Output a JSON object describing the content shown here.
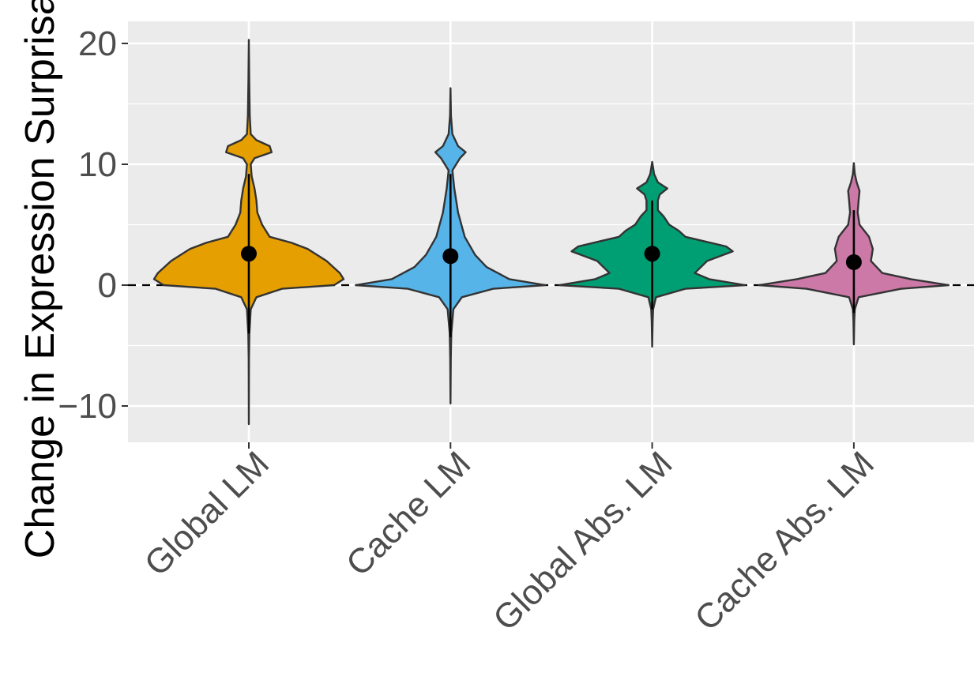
{
  "chart_data": {
    "type": "violin",
    "title": "",
    "xlabel": "",
    "ylabel": "Change in Expression Surprisal",
    "ylim": [
      -13,
      22
    ],
    "y_ticks": [
      -10,
      0,
      10,
      20
    ],
    "y_tick_labels": [
      "−10",
      "0",
      "10",
      "20"
    ],
    "grid": true,
    "legend": "none",
    "reference_line": {
      "y": 0,
      "style": "dashed"
    },
    "categories": [
      "Global LM",
      "Cache LM",
      "Global Abs. LM",
      "Cache Abs. LM"
    ],
    "series": [
      {
        "category": "Global LM",
        "color": "#E69F00",
        "mean": 2.6,
        "whisker": [
          -4.0,
          9.2
        ],
        "range": [
          -11.5,
          20.3
        ],
        "density": [
          [
            -11.5,
            0.0
          ],
          [
            -6,
            0.002
          ],
          [
            -4,
            0.006
          ],
          [
            -2,
            0.02
          ],
          [
            -1,
            0.08
          ],
          [
            -0.3,
            0.35
          ],
          [
            0,
            0.9
          ],
          [
            0.5,
            1.0
          ],
          [
            1.0,
            0.96
          ],
          [
            2.0,
            0.82
          ],
          [
            3.0,
            0.62
          ],
          [
            3.5,
            0.45
          ],
          [
            4.0,
            0.22
          ],
          [
            5.0,
            0.14
          ],
          [
            6.0,
            0.09
          ],
          [
            7.0,
            0.08
          ],
          [
            8.0,
            0.06
          ],
          [
            9.0,
            0.03
          ],
          [
            10.0,
            0.02
          ],
          [
            10.5,
            0.06
          ],
          [
            11.0,
            0.24
          ],
          [
            11.5,
            0.22
          ],
          [
            12.0,
            0.08
          ],
          [
            12.5,
            0.02
          ],
          [
            14,
            0.01
          ],
          [
            17,
            0.004
          ],
          [
            20.3,
            0.0
          ]
        ]
      },
      {
        "category": "Cache LM",
        "color": "#56B4E9",
        "mean": 2.4,
        "whisker": [
          -4.3,
          9.2
        ],
        "range": [
          -9.8,
          16.3
        ],
        "density": [
          [
            -9.8,
            0.0
          ],
          [
            -6,
            0.003
          ],
          [
            -4,
            0.008
          ],
          [
            -2,
            0.03
          ],
          [
            -1,
            0.12
          ],
          [
            -0.3,
            0.45
          ],
          [
            0,
            1.0
          ],
          [
            0.5,
            0.62
          ],
          [
            1.5,
            0.38
          ],
          [
            2.5,
            0.26
          ],
          [
            4.0,
            0.15
          ],
          [
            6.0,
            0.08
          ],
          [
            8.0,
            0.04
          ],
          [
            9.5,
            0.02
          ],
          [
            10.5,
            0.1
          ],
          [
            11.0,
            0.16
          ],
          [
            11.5,
            0.08
          ],
          [
            12.5,
            0.02
          ],
          [
            14,
            0.005
          ],
          [
            16.3,
            0.0
          ]
        ]
      },
      {
        "category": "Global Abs. LM",
        "color": "#009E73",
        "mean": 2.6,
        "whisker": [
          -2.0,
          7.0
        ],
        "range": [
          -5.1,
          10.2
        ],
        "density": [
          [
            -5.1,
            0.0
          ],
          [
            -3,
            0.005
          ],
          [
            -2,
            0.01
          ],
          [
            -1,
            0.04
          ],
          [
            -0.3,
            0.35
          ],
          [
            0,
            0.98
          ],
          [
            0.5,
            0.6
          ],
          [
            1.0,
            0.45
          ],
          [
            2.0,
            0.58
          ],
          [
            2.8,
            0.85
          ],
          [
            3.2,
            0.78
          ],
          [
            4.0,
            0.35
          ],
          [
            4.5,
            0.28
          ],
          [
            5.0,
            0.18
          ],
          [
            5.7,
            0.12
          ],
          [
            6.2,
            0.06
          ],
          [
            7.0,
            0.06
          ],
          [
            7.5,
            0.08
          ],
          [
            8.0,
            0.16
          ],
          [
            8.5,
            0.06
          ],
          [
            9.2,
            0.02
          ],
          [
            10.2,
            0.0
          ]
        ]
      },
      {
        "category": "Cache Abs. LM",
        "color": "#CC79A7",
        "mean": 1.9,
        "whisker": [
          -2.3,
          6.2
        ],
        "range": [
          -4.9,
          10.1
        ],
        "density": [
          [
            -4.9,
            0.0
          ],
          [
            -3,
            0.004
          ],
          [
            -2,
            0.01
          ],
          [
            -1,
            0.05
          ],
          [
            -0.3,
            0.5
          ],
          [
            0,
            1.0
          ],
          [
            0.5,
            0.6
          ],
          [
            1.0,
            0.3
          ],
          [
            2.0,
            0.18
          ],
          [
            3.0,
            0.2
          ],
          [
            4.0,
            0.16
          ],
          [
            5.0,
            0.06
          ],
          [
            6.0,
            0.04
          ],
          [
            7.0,
            0.05
          ],
          [
            7.8,
            0.06
          ],
          [
            8.5,
            0.03
          ],
          [
            9.2,
            0.01
          ],
          [
            10.1,
            0.0
          ]
        ]
      }
    ]
  }
}
